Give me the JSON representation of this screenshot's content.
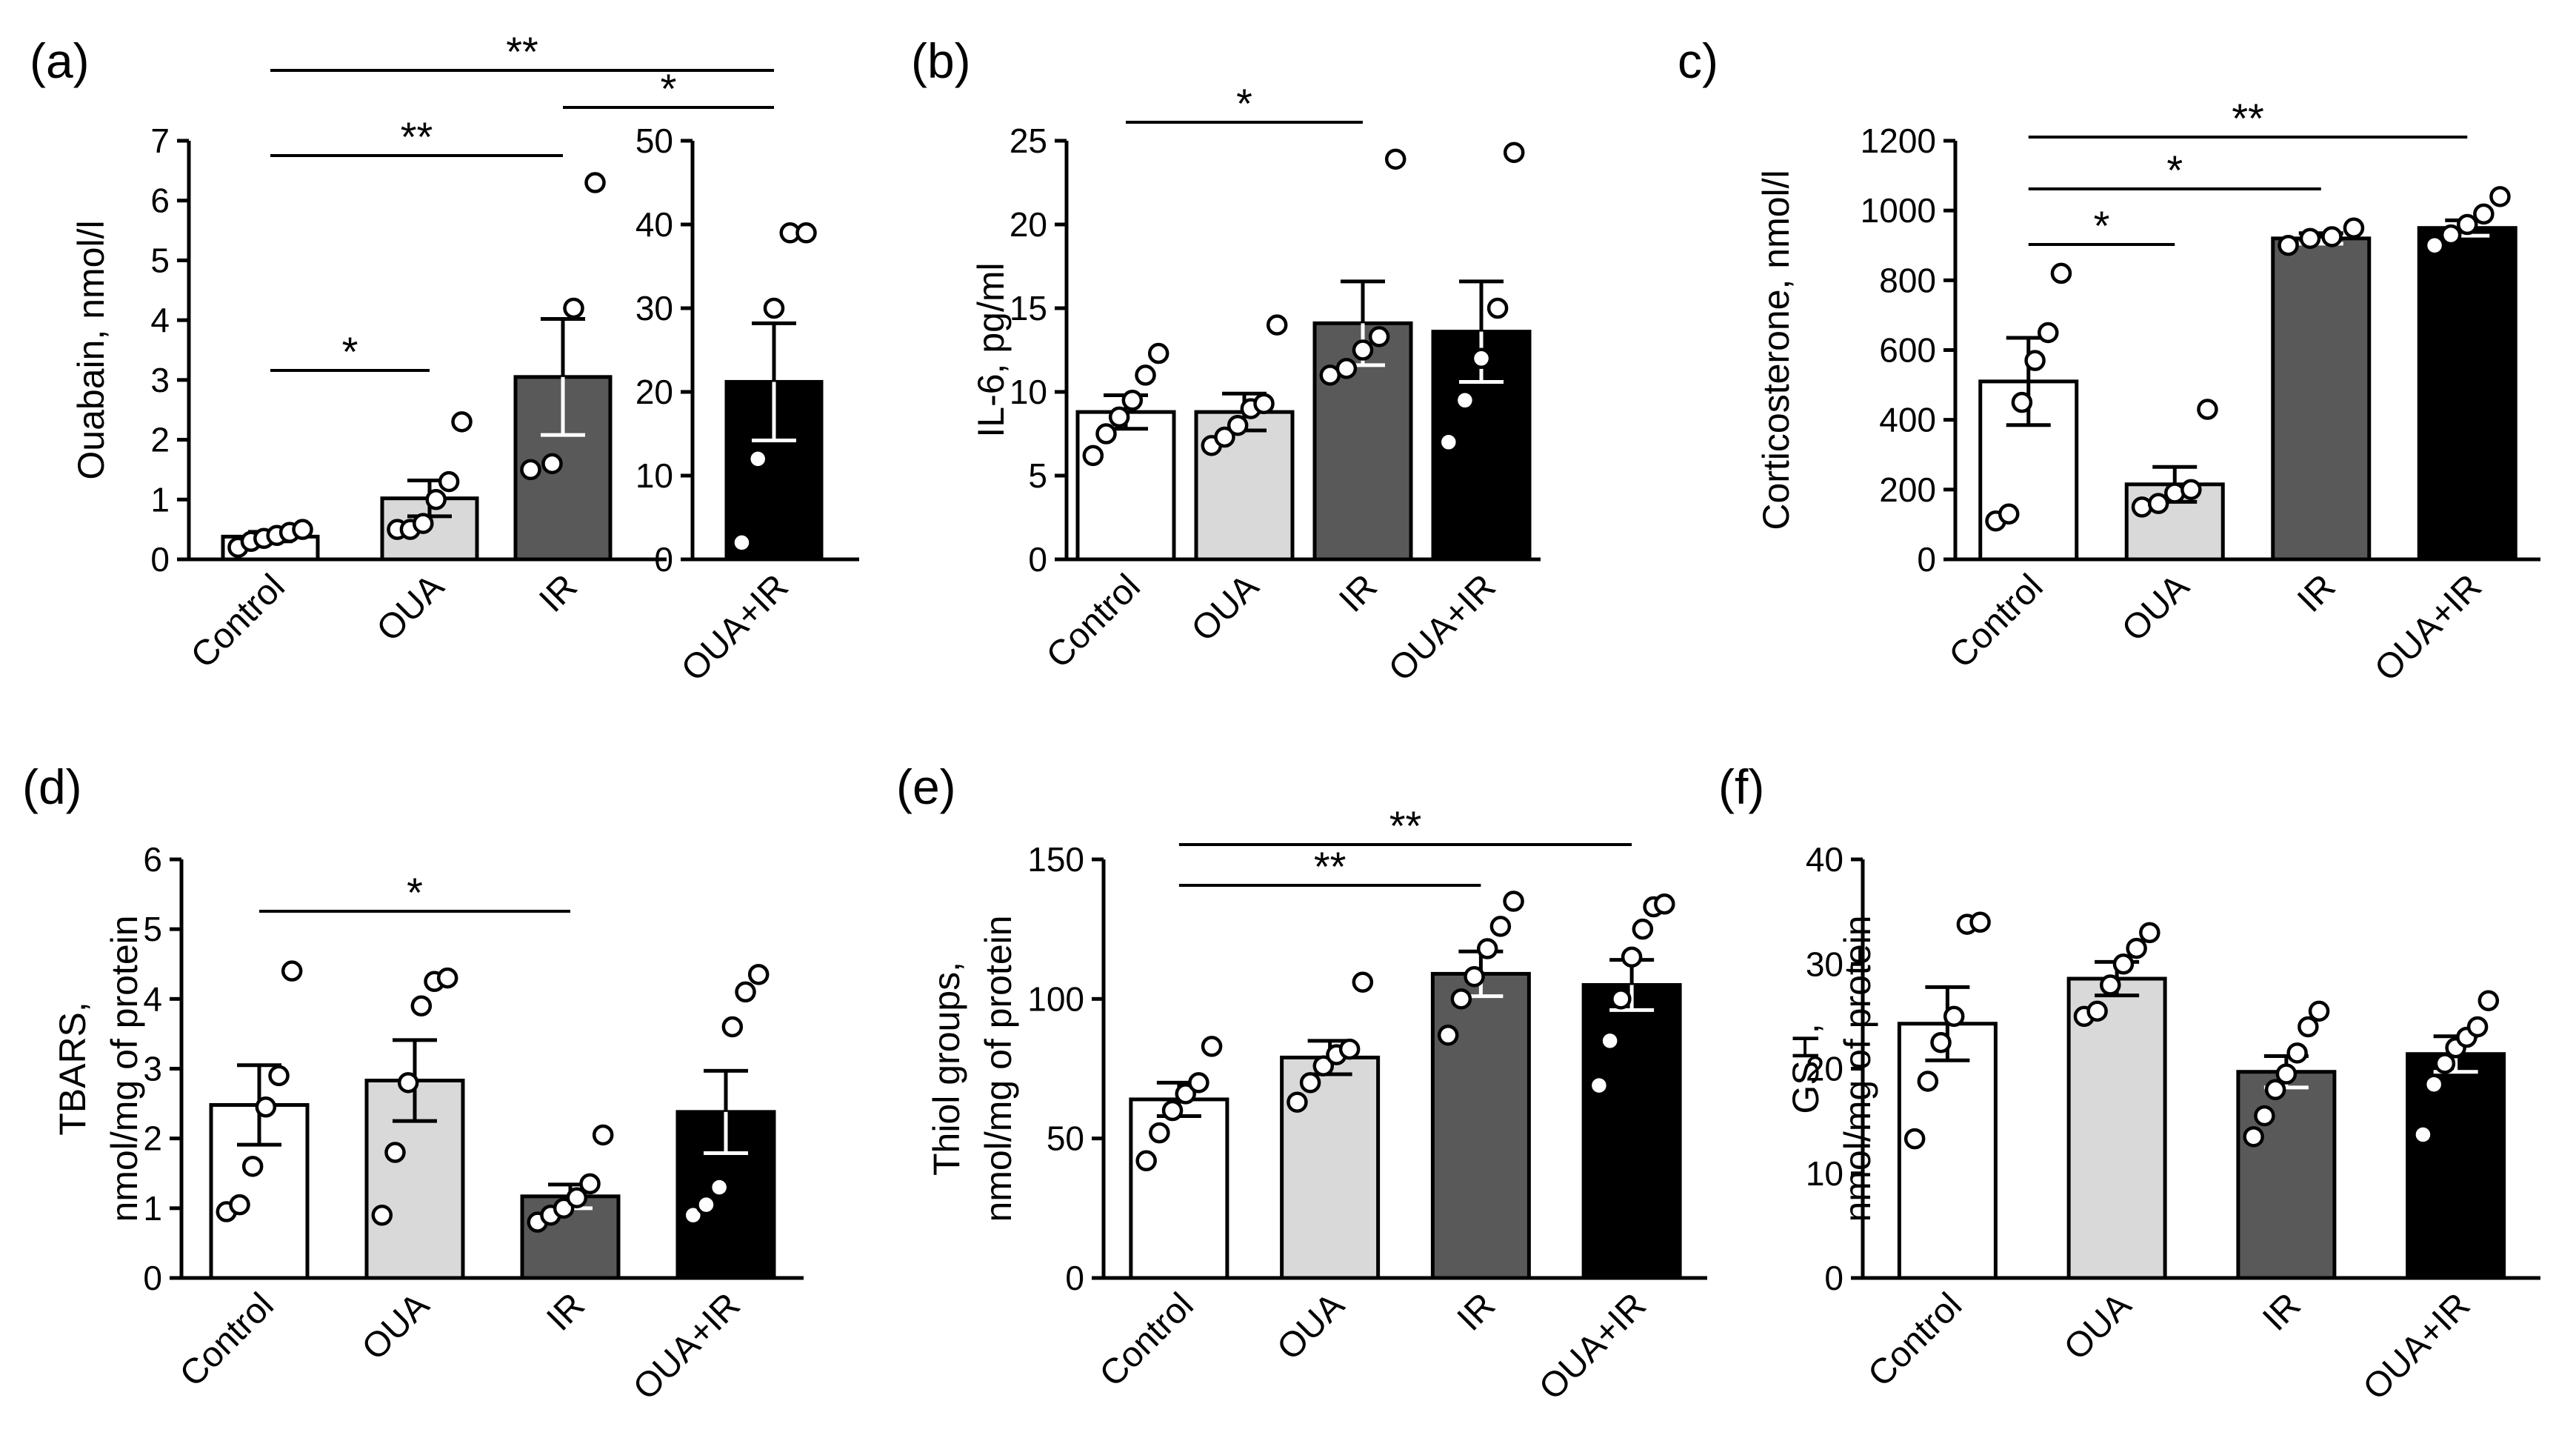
{
  "colors": {
    "Control": "#ffffff",
    "OUA": "#d9d9d9",
    "IR": "#595959",
    "OUA+IR": "#000000",
    "axis": "#000000"
  },
  "chart_data": [
    {
      "panel": "(a)",
      "type": "bar",
      "ylabel": "Ouabain, nmol/l",
      "categories": [
        "Control",
        "OUA",
        "IR",
        "OUA+IR"
      ],
      "axes": [
        {
          "categories": [
            "Control",
            "OUA",
            "IR"
          ],
          "ylim": [
            0,
            7
          ],
          "yticks": [
            0,
            1,
            2,
            3,
            4,
            5,
            6,
            7
          ]
        },
        {
          "categories": [
            "OUA+IR"
          ],
          "ylim": [
            0,
            50
          ],
          "yticks": [
            0,
            10,
            20,
            30,
            40,
            50
          ]
        }
      ],
      "means": [
        0.38,
        1.02,
        3.05,
        21.2
      ],
      "sem": [
        0.08,
        0.3,
        0.97,
        7.0
      ],
      "points": [
        [
          0.2,
          0.3,
          0.35,
          0.4,
          0.45,
          0.5
        ],
        [
          0.5,
          0.5,
          0.6,
          1.0,
          1.3,
          2.3
        ],
        [
          1.5,
          1.6,
          4.2,
          6.3
        ],
        [
          2,
          12,
          30,
          39,
          39
        ]
      ],
      "significance": [
        {
          "from": "Control",
          "to": "OUA",
          "label": "*"
        },
        {
          "from": "Control",
          "to": "IR",
          "label": "**"
        },
        {
          "from": "IR",
          "to": "OUA+IR",
          "label": "*"
        },
        {
          "from": "Control",
          "to": "OUA+IR",
          "label": "**"
        }
      ]
    },
    {
      "panel": "(b)",
      "type": "bar",
      "ylabel": "IL-6, pg/ml",
      "categories": [
        "Control",
        "OUA",
        "IR",
        "OUA+IR"
      ],
      "ylim": [
        0,
        25
      ],
      "yticks": [
        0,
        5,
        10,
        15,
        20,
        25
      ],
      "means": [
        8.8,
        8.8,
        14.1,
        13.6
      ],
      "sem": [
        1.0,
        1.1,
        2.5,
        3.0
      ],
      "points": [
        [
          6.2,
          7.5,
          8.5,
          9.5,
          11.0,
          12.3
        ],
        [
          6.8,
          7.3,
          8.0,
          9.0,
          9.3,
          14.0
        ],
        [
          11.0,
          11.4,
          12.5,
          13.3,
          23.9
        ],
        [
          7.0,
          9.5,
          12.0,
          15.0,
          24.3
        ]
      ],
      "significance": [
        {
          "from": "Control",
          "to": "IR",
          "label": "*"
        }
      ]
    },
    {
      "panel": "c)",
      "type": "bar",
      "ylabel": "Corticosterone, nmol/l",
      "categories": [
        "Control",
        "OUA",
        "IR",
        "OUA+IR"
      ],
      "ylim": [
        0,
        1200
      ],
      "yticks": [
        0,
        200,
        400,
        600,
        800,
        1000,
        1200
      ],
      "means": [
        510,
        215,
        920,
        950
      ],
      "sem": [
        125,
        50,
        15,
        22
      ],
      "points": [
        [
          110,
          130,
          450,
          570,
          650,
          820
        ],
        [
          150,
          160,
          190,
          200,
          430
        ],
        [
          900,
          920,
          925,
          950
        ],
        [
          900,
          930,
          960,
          990,
          1040
        ]
      ],
      "significance": [
        {
          "from": "Control",
          "to": "OUA",
          "label": "*"
        },
        {
          "from": "Control",
          "to": "IR",
          "label": "*"
        },
        {
          "from": "Control",
          "to": "OUA+IR",
          "label": "**"
        }
      ]
    },
    {
      "panel": "(d)",
      "type": "bar",
      "ylabel": [
        "TBARS,",
        "nmol/mg of protein"
      ],
      "categories": [
        "Control",
        "OUA",
        "IR",
        "OUA+IR"
      ],
      "ylim": [
        0,
        6
      ],
      "yticks": [
        0,
        1,
        2,
        3,
        4,
        5,
        6
      ],
      "means": [
        2.48,
        2.83,
        1.17,
        2.38
      ],
      "sem": [
        0.57,
        0.58,
        0.17,
        0.59
      ],
      "points": [
        [
          0.95,
          1.05,
          1.6,
          2.45,
          2.9,
          4.4
        ],
        [
          0.9,
          1.8,
          2.8,
          3.9,
          4.25,
          4.3
        ],
        [
          0.8,
          0.9,
          1.0,
          1.15,
          1.35,
          2.05
        ],
        [
          0.9,
          1.05,
          1.3,
          3.6,
          4.1,
          4.35
        ]
      ],
      "significance": [
        {
          "from": "Control",
          "to": "IR",
          "label": "*"
        }
      ]
    },
    {
      "panel": "(e)",
      "type": "bar",
      "ylabel": [
        "Thiol groups,",
        "nmol/mg of protein"
      ],
      "categories": [
        "Control",
        "OUA",
        "IR",
        "OUA+IR"
      ],
      "ylim": [
        0,
        150
      ],
      "yticks": [
        0,
        50,
        100,
        150
      ],
      "means": [
        64,
        79,
        109,
        105
      ],
      "sem": [
        6,
        6,
        8,
        9
      ],
      "points": [
        [
          42,
          52,
          60,
          66,
          70,
          83
        ],
        [
          63,
          70,
          76,
          80,
          82,
          106
        ],
        [
          87,
          100,
          108,
          118,
          126,
          135
        ],
        [
          69,
          85,
          100,
          115,
          125,
          133,
          134
        ]
      ],
      "significance": [
        {
          "from": "Control",
          "to": "IR",
          "label": "**"
        },
        {
          "from": "Control",
          "to": "OUA+IR",
          "label": "**"
        }
      ]
    },
    {
      "panel": "(f)",
      "type": "bar",
      "ylabel": [
        "GSH,",
        "nmol/mg of protein"
      ],
      "categories": [
        "Control",
        "OUA",
        "IR",
        "OUA+IR"
      ],
      "ylim": [
        0,
        40
      ],
      "yticks": [
        0,
        10,
        20,
        30,
        40
      ],
      "means": [
        24.3,
        28.6,
        19.7,
        21.4
      ],
      "sem": [
        3.5,
        1.6,
        1.5,
        1.7
      ],
      "points": [
        [
          13.3,
          18.8,
          22.5,
          25.0,
          33.8,
          34.0
        ],
        [
          25.0,
          25.5,
          28.0,
          30.0,
          31.5,
          33.0
        ],
        [
          13.5,
          15.5,
          18.0,
          19.5,
          21.5,
          24.0,
          25.5
        ],
        [
          13.7,
          18.5,
          20.5,
          22.0,
          23.0,
          24.0,
          26.5
        ]
      ],
      "significance": []
    }
  ]
}
